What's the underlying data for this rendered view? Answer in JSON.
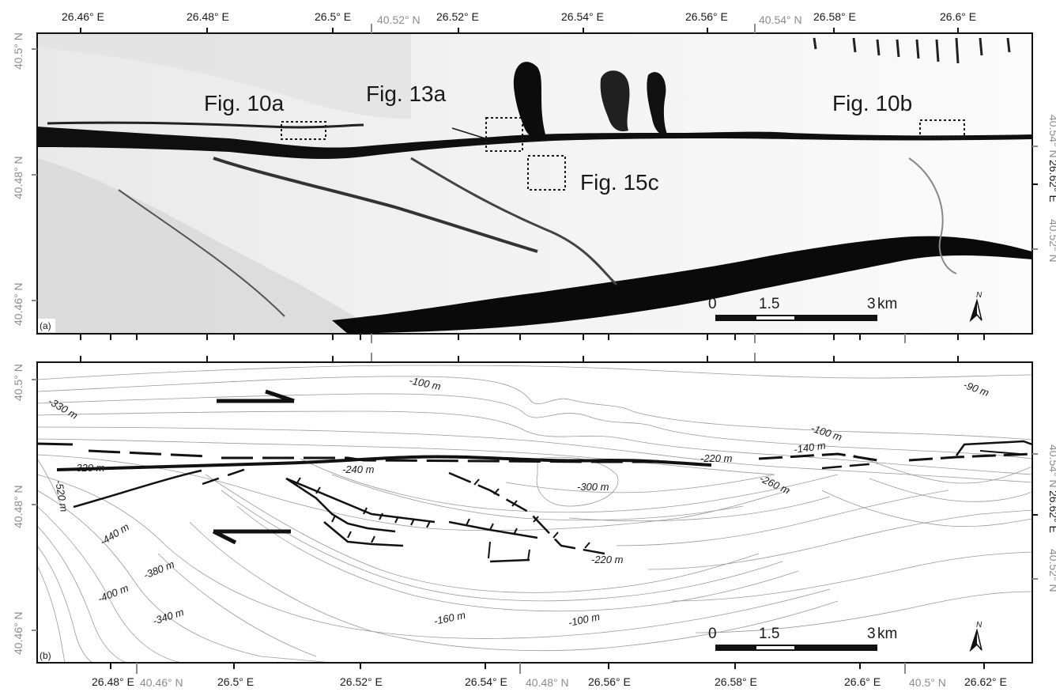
{
  "panel_a": {
    "label": "(a)",
    "top_lon_ticks": [
      "26.46° E",
      "26.48° E",
      "26.5° E",
      "26.52° E",
      "26.54° E",
      "26.56° E",
      "26.58° E",
      "26.6° E"
    ],
    "top_lat_grey": [
      "40.52° N",
      "40.54° N"
    ],
    "left_lat_ticks": [
      "40.5° N",
      "40.48° N",
      "40.46° N"
    ],
    "right_ticks": [
      "40.54° N",
      "26.62° E",
      "40.52° N"
    ],
    "figure_refs": [
      "Fig. 10a",
      "Fig. 13a",
      "Fig. 15c",
      "Fig. 10b"
    ],
    "scale": {
      "zero": "0",
      "mid": "1.5",
      "end": "3",
      "unit": "km"
    },
    "north": "N"
  },
  "panel_b": {
    "label": "(b)",
    "bottom_lon_ticks": [
      "26.48° E",
      "26.5° E",
      "26.52° E",
      "26.54° E",
      "26.56° E",
      "26.58° E",
      "26.6° E",
      "26.62° E"
    ],
    "bottom_lat_grey": [
      "40.46° N",
      "40.48° N",
      "40.5° N"
    ],
    "left_lat_ticks": [
      "40.5° N",
      "40.48° N",
      "40.46° N"
    ],
    "right_ticks": [
      "40.54° N",
      "26.62° E",
      "40.52° N"
    ],
    "contour_labels": [
      "-100 m",
      "-90 m",
      "-330 m",
      "-100 m",
      "-140 m",
      "-320 m",
      "-240 m",
      "-220 m",
      "-260 m",
      "-520 m",
      "-300 m",
      "-440 m",
      "-400 m",
      "-380 m",
      "-340 m",
      "-220 m",
      "-160 m",
      "-100 m"
    ],
    "scale": {
      "zero": "0",
      "mid": "1.5",
      "end": "3",
      "unit": "km"
    },
    "north": "N"
  },
  "colors": {
    "frame": "#1a1a1a",
    "grey_tick": "#8c8c8c",
    "contour": "#9a9a9a",
    "fault": "#111111"
  }
}
